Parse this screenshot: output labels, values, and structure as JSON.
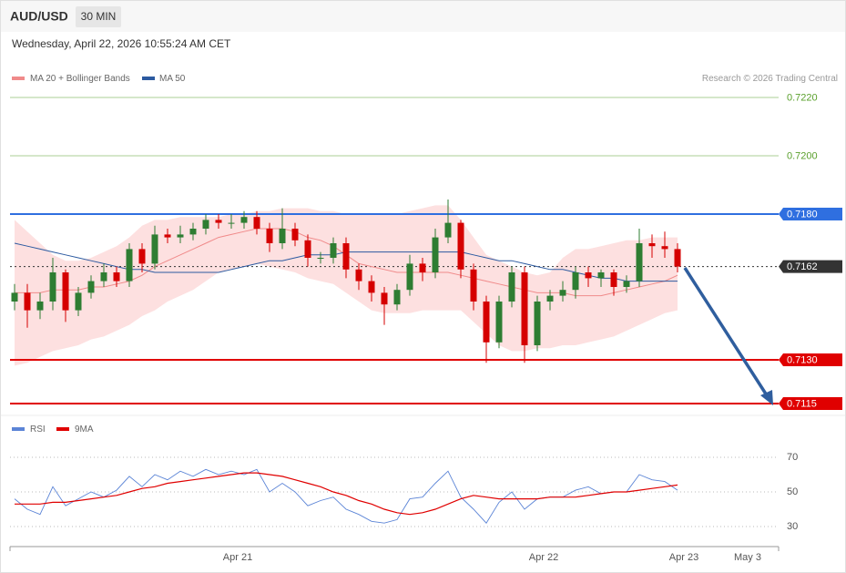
{
  "header": {
    "symbol": "AUD/USD",
    "interval": "30 MIN",
    "datetime": "Wednesday, April 22, 2026 10:55:24 AM CET"
  },
  "chart_data": [
    {
      "type": "candlestick",
      "copyright": "Research © 2026 Trading Central",
      "up_color": "#2e7d32",
      "down_color": "#d50000",
      "open": [
        0.715,
        0.7153,
        0.7147,
        0.715,
        0.716,
        0.7147,
        0.7153,
        0.7157,
        0.716,
        0.7157,
        0.7168,
        0.7163,
        0.7173,
        0.7172,
        0.7173,
        0.7175,
        0.7178,
        0.7177,
        0.7177,
        0.7179,
        0.7175,
        0.717,
        0.7175,
        0.7171,
        0.7165,
        0.7165,
        0.717,
        0.7161,
        0.7157,
        0.7153,
        0.7149,
        0.7154,
        0.7163,
        0.716,
        0.7172,
        0.7177,
        0.7161,
        0.715,
        0.7136,
        0.715,
        0.716,
        0.7135,
        0.715,
        0.7152,
        0.7154,
        0.716,
        0.7158,
        0.716,
        0.7155,
        0.7157,
        0.717,
        0.7169,
        0.7168
      ],
      "high": [
        0.7156,
        0.7156,
        0.7153,
        0.7165,
        0.7161,
        0.7155,
        0.7159,
        0.7163,
        0.7162,
        0.717,
        0.717,
        0.7176,
        0.7175,
        0.7176,
        0.7177,
        0.718,
        0.718,
        0.718,
        0.7181,
        0.7181,
        0.7177,
        0.7182,
        0.7177,
        0.7173,
        0.7167,
        0.7172,
        0.7172,
        0.7163,
        0.7159,
        0.7155,
        0.7156,
        0.7166,
        0.7165,
        0.7175,
        0.7185,
        0.7178,
        0.7163,
        0.7152,
        0.7152,
        0.7162,
        0.7162,
        0.7152,
        0.7154,
        0.7157,
        0.7162,
        0.7162,
        0.7161,
        0.7161,
        0.7159,
        0.7175,
        0.7173,
        0.7174,
        0.717
      ],
      "low": [
        0.7147,
        0.7141,
        0.7144,
        0.7147,
        0.7143,
        0.7145,
        0.7151,
        0.7155,
        0.7155,
        0.7155,
        0.716,
        0.7161,
        0.717,
        0.717,
        0.7171,
        0.7173,
        0.7175,
        0.7175,
        0.7175,
        0.7173,
        0.7167,
        0.7168,
        0.7169,
        0.7162,
        0.7163,
        0.7163,
        0.7158,
        0.7154,
        0.715,
        0.7142,
        0.7147,
        0.7152,
        0.7157,
        0.7158,
        0.717,
        0.7158,
        0.7147,
        0.7129,
        0.7134,
        0.7148,
        0.7129,
        0.7133,
        0.7147,
        0.715,
        0.7151,
        0.7155,
        0.7155,
        0.7152,
        0.7153,
        0.7155,
        0.7165,
        0.7165,
        0.716
      ],
      "close": [
        0.7153,
        0.7147,
        0.715,
        0.716,
        0.7147,
        0.7153,
        0.7157,
        0.716,
        0.7157,
        0.7168,
        0.7163,
        0.7173,
        0.7172,
        0.7173,
        0.7175,
        0.7178,
        0.7177,
        0.7177,
        0.7179,
        0.7175,
        0.717,
        0.7175,
        0.7171,
        0.7165,
        0.7165,
        0.717,
        0.7161,
        0.7157,
        0.7153,
        0.7149,
        0.7154,
        0.7163,
        0.716,
        0.7172,
        0.7177,
        0.7161,
        0.715,
        0.7136,
        0.715,
        0.716,
        0.7135,
        0.715,
        0.7152,
        0.7154,
        0.716,
        0.7158,
        0.716,
        0.7155,
        0.7157,
        0.717,
        0.7169,
        0.7168,
        0.7162
      ],
      "ma20": {
        "name": "MA 20 + Bollinger Bands",
        "color": "#f08a8a",
        "band_color": "#fde0e0",
        "values": [
          0.7153,
          0.7153,
          0.7153,
          0.7154,
          0.7154,
          0.7154,
          0.7155,
          0.7155,
          0.7156,
          0.7157,
          0.7159,
          0.7162,
          0.7164,
          0.7166,
          0.7168,
          0.717,
          0.7172,
          0.7173,
          0.7174,
          0.7175,
          0.7175,
          0.7175,
          0.7174,
          0.7172,
          0.7171,
          0.7169,
          0.7166,
          0.7163,
          0.7162,
          0.7161,
          0.716,
          0.716,
          0.716,
          0.716,
          0.716,
          0.7159,
          0.7158,
          0.7157,
          0.7156,
          0.7155,
          0.7154,
          0.7153,
          0.7153,
          0.7153,
          0.7152,
          0.7152,
          0.7152,
          0.7153,
          0.7154,
          0.7155,
          0.7156,
          0.7157,
          0.7159
        ],
        "upper": [
          0.7178,
          0.7174,
          0.717,
          0.7166,
          0.7164,
          0.7164,
          0.7165,
          0.7167,
          0.7169,
          0.7172,
          0.7176,
          0.7178,
          0.7178,
          0.7179,
          0.7179,
          0.7179,
          0.7179,
          0.718,
          0.718,
          0.7181,
          0.7181,
          0.7182,
          0.7182,
          0.7182,
          0.7181,
          0.7181,
          0.718,
          0.718,
          0.718,
          0.718,
          0.718,
          0.7181,
          0.7182,
          0.7183,
          0.7183,
          0.7178,
          0.7172,
          0.7166,
          0.7164,
          0.7162,
          0.716,
          0.7159,
          0.716,
          0.7165,
          0.7168,
          0.7168,
          0.7169,
          0.717,
          0.7171,
          0.7171,
          0.7172,
          0.7172,
          0.7172
        ],
        "lower": [
          0.7128,
          0.7129,
          0.7131,
          0.7133,
          0.7134,
          0.7135,
          0.7137,
          0.7138,
          0.714,
          0.7142,
          0.7145,
          0.7147,
          0.715,
          0.7152,
          0.7154,
          0.7157,
          0.716,
          0.7161,
          0.7162,
          0.7163,
          0.7162,
          0.7161,
          0.716,
          0.7158,
          0.7157,
          0.7156,
          0.7153,
          0.715,
          0.7147,
          0.7146,
          0.7146,
          0.7146,
          0.7147,
          0.7147,
          0.7147,
          0.7147,
          0.7143,
          0.7139,
          0.7135,
          0.7133,
          0.7133,
          0.7134,
          0.7134,
          0.7135,
          0.7135,
          0.7136,
          0.7137,
          0.7138,
          0.714,
          0.7142,
          0.7144,
          0.7146,
          0.7147
        ]
      },
      "ma50": {
        "name": "MA 50",
        "color": "#2c5aa0",
        "values": [
          0.717,
          0.7169,
          0.7168,
          0.7167,
          0.7166,
          0.7165,
          0.7164,
          0.7163,
          0.7162,
          0.7161,
          0.7161,
          0.716,
          0.716,
          0.716,
          0.716,
          0.716,
          0.716,
          0.7161,
          0.7162,
          0.7163,
          0.7164,
          0.7164,
          0.7165,
          0.7166,
          0.7166,
          0.7166,
          0.7167,
          0.7167,
          0.7167,
          0.7167,
          0.7167,
          0.7167,
          0.7167,
          0.7167,
          0.7167,
          0.7167,
          0.7166,
          0.7165,
          0.7164,
          0.7164,
          0.7163,
          0.7162,
          0.7161,
          0.7161,
          0.716,
          0.7159,
          0.7158,
          0.7158,
          0.7157,
          0.7157,
          0.7157,
          0.7157,
          0.7157
        ]
      },
      "ylim": [
        0.7112,
        0.7224
      ],
      "levels": [
        {
          "value": 0.722,
          "label": "0.7220",
          "color": "#5aa02c",
          "box": false,
          "dash": false
        },
        {
          "value": 0.72,
          "label": "0.7200",
          "color": "#5aa02c",
          "box": false,
          "dash": false
        },
        {
          "value": 0.718,
          "label": "0.7180",
          "color": "#2f6fe0",
          "box": true,
          "dash": false
        },
        {
          "value": 0.7162,
          "label": "0.7162",
          "color": "#333333",
          "box": true,
          "dash": true
        },
        {
          "value": 0.713,
          "label": "0.7130",
          "color": "#e00000",
          "box": true,
          "dash": false
        },
        {
          "value": 0.7115,
          "label": "0.7115",
          "color": "#e00000",
          "box": true,
          "dash": false
        }
      ],
      "x_labels": [
        "Apr 21",
        "Apr 22",
        "Apr 23",
        "May 3"
      ]
    },
    {
      "type": "line",
      "series": [
        {
          "name": "RSI",
          "color": "#5b84d6",
          "values": [
            46,
            40,
            37,
            53,
            42,
            46,
            50,
            47,
            51,
            59,
            53,
            60,
            57,
            62,
            59,
            63,
            60,
            62,
            60,
            63,
            50,
            55,
            50,
            42,
            45,
            47,
            40,
            37,
            33,
            32,
            34,
            46,
            47,
            55,
            62,
            47,
            40,
            32,
            44,
            50,
            40,
            46,
            47,
            47,
            51,
            53,
            49,
            50,
            50,
            60,
            57,
            56,
            51
          ]
        },
        {
          "name": "9MA",
          "color": "#e00000",
          "values": [
            43,
            43,
            43,
            44,
            44,
            45,
            46,
            47,
            48,
            50,
            52,
            53,
            55,
            56,
            57,
            58,
            59,
            60,
            61,
            61,
            60,
            59,
            57,
            55,
            53,
            50,
            48,
            45,
            43,
            40,
            38,
            37,
            38,
            40,
            43,
            46,
            48,
            47,
            46,
            46,
            46,
            46,
            47,
            47,
            47,
            48,
            49,
            50,
            50,
            51,
            52,
            53,
            54
          ]
        }
      ],
      "ylim": [
        20,
        80
      ],
      "yticks": [
        30,
        50,
        70
      ]
    }
  ]
}
